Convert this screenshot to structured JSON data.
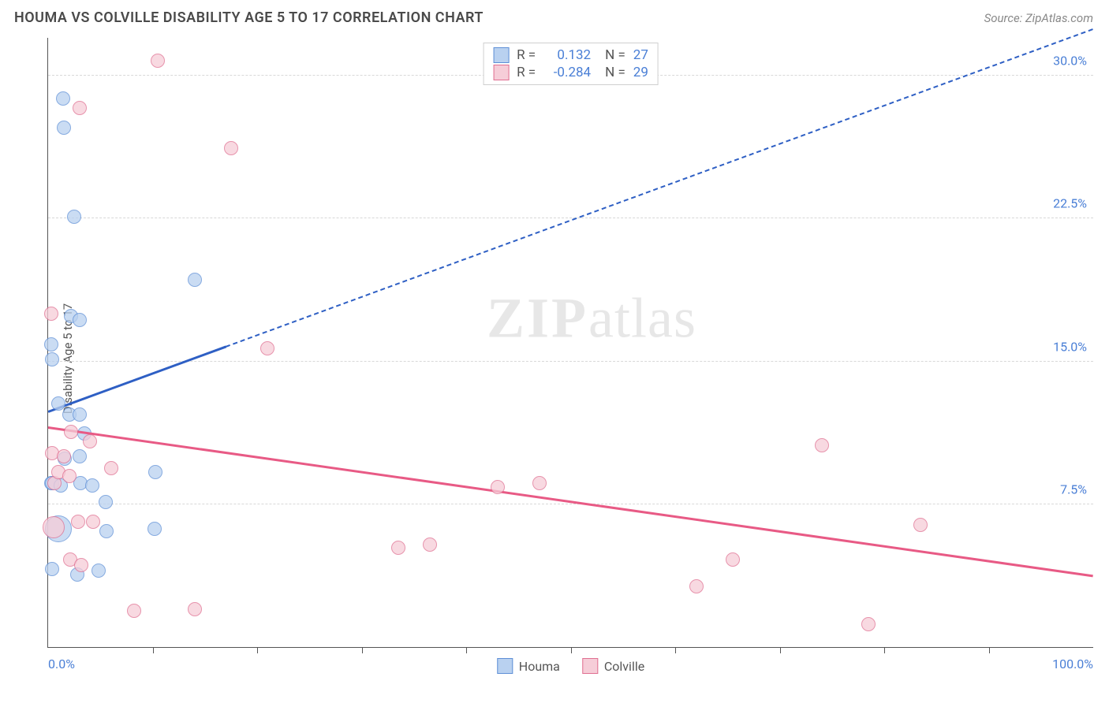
{
  "title": "HOUMA VS COLVILLE DISABILITY AGE 5 TO 17 CORRELATION CHART",
  "source": "Source: ZipAtlas.com",
  "ylabel": "Disability Age 5 to 17",
  "watermark_bold": "ZIP",
  "watermark_rest": "atlas",
  "chart": {
    "type": "scatter",
    "background_color": "#ffffff",
    "grid_color": "#d8d8d8",
    "xlim": [
      0,
      100
    ],
    "ylim": [
      0,
      32
    ],
    "xticks_minor": [
      10,
      20,
      30,
      40,
      50,
      60,
      70,
      80,
      90
    ],
    "xtick_labels": [
      {
        "pos": 0,
        "label": "0.0%",
        "color": "#4a7fd6"
      },
      {
        "pos": 100,
        "label": "100.0%",
        "color": "#4a7fd6"
      }
    ],
    "ytick_labels": [
      {
        "pos": 7.5,
        "label": "7.5%",
        "color": "#4a7fd6"
      },
      {
        "pos": 15.0,
        "label": "15.0%",
        "color": "#4a7fd6"
      },
      {
        "pos": 22.5,
        "label": "22.5%",
        "color": "#4a7fd6"
      },
      {
        "pos": 30.0,
        "label": "30.0%",
        "color": "#4a7fd6"
      }
    ],
    "gridlines_y": [
      7.5,
      15.0,
      22.5,
      30.0
    ],
    "series": [
      {
        "name": "Houma",
        "marker_fill": "#b9d1f0",
        "marker_stroke": "#5e8fd6",
        "marker_size": 18,
        "R": "0.132",
        "N": "27",
        "trend": {
          "x1": 0,
          "y1": 12.4,
          "x2": 100,
          "y2": 32.5,
          "solid_until_x": 17,
          "color": "#2e5fc4"
        },
        "points": [
          {
            "x": 0.3,
            "y": 15.9
          },
          {
            "x": 0.4,
            "y": 15.1
          },
          {
            "x": 0.3,
            "y": 8.6
          },
          {
            "x": 0.4,
            "y": 8.6
          },
          {
            "x": 0.4,
            "y": 4.1
          },
          {
            "x": 1.0,
            "y": 12.8
          },
          {
            "x": 1.2,
            "y": 8.5
          },
          {
            "x": 1.4,
            "y": 28.8
          },
          {
            "x": 1.5,
            "y": 27.3
          },
          {
            "x": 1.6,
            "y": 9.9
          },
          {
            "x": 2.0,
            "y": 12.2
          },
          {
            "x": 2.2,
            "y": 17.4
          },
          {
            "x": 2.5,
            "y": 22.6
          },
          {
            "x": 2.8,
            "y": 3.8
          },
          {
            "x": 3.0,
            "y": 17.2
          },
          {
            "x": 3.0,
            "y": 10.0
          },
          {
            "x": 3.0,
            "y": 12.2
          },
          {
            "x": 3.1,
            "y": 8.6
          },
          {
            "x": 3.5,
            "y": 11.2
          },
          {
            "x": 4.2,
            "y": 8.5
          },
          {
            "x": 4.8,
            "y": 4.0
          },
          {
            "x": 5.5,
            "y": 7.6
          },
          {
            "x": 5.6,
            "y": 6.1
          },
          {
            "x": 10.2,
            "y": 6.2
          },
          {
            "x": 10.3,
            "y": 9.2
          },
          {
            "x": 14.0,
            "y": 19.3
          },
          {
            "x": 1.0,
            "y": 6.2,
            "size": 34
          }
        ]
      },
      {
        "name": "Colville",
        "marker_fill": "#f6cdd8",
        "marker_stroke": "#e06f91",
        "marker_size": 18,
        "R": "-0.284",
        "N": "29",
        "trend": {
          "x1": 0,
          "y1": 11.6,
          "x2": 100,
          "y2": 3.8,
          "solid_until_x": 100,
          "color": "#e85a85"
        },
        "points": [
          {
            "x": 0.3,
            "y": 17.5
          },
          {
            "x": 0.4,
            "y": 10.2
          },
          {
            "x": 0.5,
            "y": 6.3,
            "size": 28
          },
          {
            "x": 0.6,
            "y": 8.6
          },
          {
            "x": 1.0,
            "y": 9.2
          },
          {
            "x": 1.5,
            "y": 10.0
          },
          {
            "x": 2.0,
            "y": 9.0
          },
          {
            "x": 2.1,
            "y": 4.6
          },
          {
            "x": 2.2,
            "y": 11.3
          },
          {
            "x": 2.9,
            "y": 6.6
          },
          {
            "x": 3.0,
            "y": 28.3
          },
          {
            "x": 3.2,
            "y": 4.3
          },
          {
            "x": 4.0,
            "y": 10.8
          },
          {
            "x": 4.3,
            "y": 6.6
          },
          {
            "x": 6.0,
            "y": 9.4
          },
          {
            "x": 8.2,
            "y": 1.9
          },
          {
            "x": 10.5,
            "y": 30.8
          },
          {
            "x": 14.0,
            "y": 2.0
          },
          {
            "x": 17.5,
            "y": 26.2
          },
          {
            "x": 21.0,
            "y": 15.7
          },
          {
            "x": 33.5,
            "y": 5.2
          },
          {
            "x": 36.5,
            "y": 5.4
          },
          {
            "x": 43.0,
            "y": 8.4
          },
          {
            "x": 47.0,
            "y": 8.6
          },
          {
            "x": 62.0,
            "y": 3.2
          },
          {
            "x": 65.5,
            "y": 4.6
          },
          {
            "x": 74.0,
            "y": 10.6
          },
          {
            "x": 78.5,
            "y": 1.2
          },
          {
            "x": 83.5,
            "y": 6.4
          }
        ]
      }
    ],
    "legend_top": {
      "R_label": "R =",
      "N_label": "N =",
      "text_color": "#555",
      "value_color": "#4a7fd6"
    },
    "legend_bottom": [
      {
        "label": "Houma",
        "fill": "#b9d1f0",
        "stroke": "#5e8fd6"
      },
      {
        "label": "Colville",
        "fill": "#f6cdd8",
        "stroke": "#e06f91"
      }
    ]
  }
}
